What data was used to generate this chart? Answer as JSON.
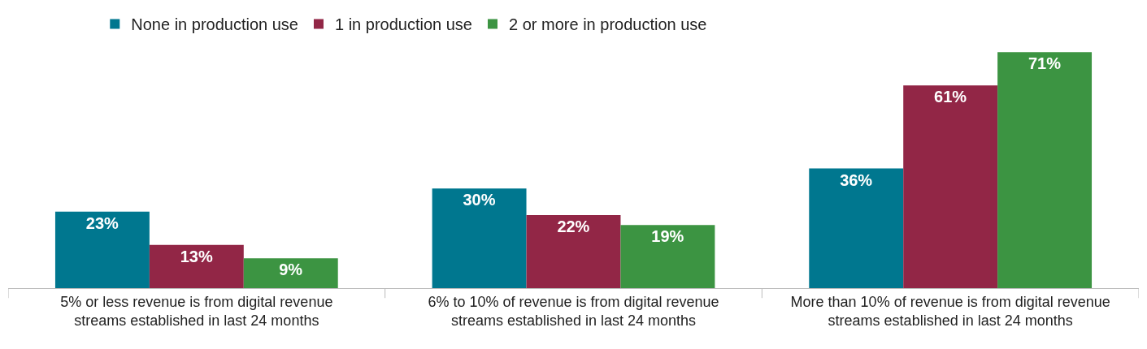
{
  "chart_data": {
    "type": "bar",
    "categories": [
      "5% or less revenue is from digital revenue streams established in last 24 months",
      "6% to 10% of revenue is from digital revenue streams established in last 24 months",
      "More than 10% of revenue is from digital revenue streams established in last 24 months"
    ],
    "series": [
      {
        "name": "None in production use",
        "color": "#00778f",
        "values": [
          23,
          30,
          36
        ],
        "value_labels": [
          "23%",
          "30%",
          "36%"
        ]
      },
      {
        "name": "1 in production use",
        "color": "#922646",
        "values": [
          13,
          22,
          61
        ],
        "value_labels": [
          "13%",
          "22%",
          "61%"
        ]
      },
      {
        "name": "2 or more in production use",
        "color": "#3c9442",
        "values": [
          9,
          19,
          71
        ],
        "value_labels": [
          "9%",
          "19%",
          "71%"
        ]
      }
    ],
    "legend": "top left"
  }
}
